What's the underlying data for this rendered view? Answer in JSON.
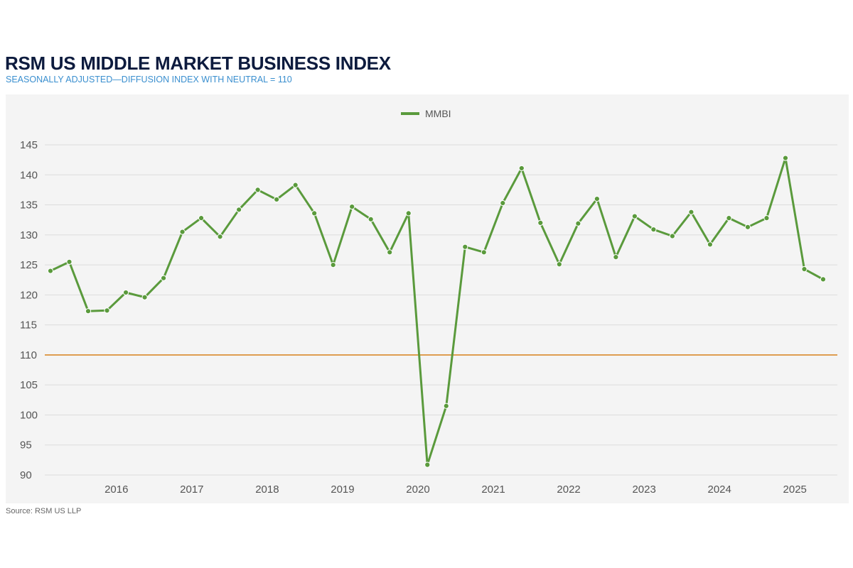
{
  "chart_data": {
    "type": "line",
    "title": "RSM US MIDDLE MARKET BUSINESS INDEX",
    "subtitle": "SEASONALLY ADJUSTED—DIFFUSION INDEX WITH NEUTRAL = 110",
    "source": "Source: RSM US LLP",
    "xlabel": "",
    "ylabel": "",
    "ylim": [
      90,
      145
    ],
    "yticks": [
      90,
      95,
      100,
      105,
      110,
      115,
      120,
      125,
      130,
      135,
      140,
      145
    ],
    "xtick_labels": [
      "2016",
      "2017",
      "2018",
      "2019",
      "2020",
      "2021",
      "2022",
      "2023",
      "2024",
      "2025"
    ],
    "grid": true,
    "legend_position": "top-center",
    "reference_line": {
      "value": 110,
      "label": "Neutral",
      "color": "#d9892b"
    },
    "series": [
      {
        "name": "MMBI",
        "color": "#5a9a3c",
        "x": [
          "2015 Q3",
          "2015 Q4",
          "2016 Q1",
          "2016 Q2",
          "2016 Q3",
          "2016 Q4",
          "2017 Q1",
          "2017 Q2",
          "2017 Q3",
          "2017 Q4",
          "2018 Q1",
          "2018 Q2",
          "2018 Q3",
          "2018 Q4",
          "2019 Q1",
          "2019 Q2",
          "2019 Q3",
          "2019 Q4",
          "2020 Q1",
          "2020 Q2",
          "2020 Q3",
          "2020 Q4",
          "2021 Q1",
          "2021 Q2",
          "2021 Q3",
          "2021 Q4",
          "2022 Q1",
          "2022 Q2",
          "2022 Q3",
          "2022 Q4",
          "2023 Q1",
          "2023 Q2",
          "2023 Q3",
          "2023 Q4",
          "2024 Q1",
          "2024 Q2",
          "2024 Q3",
          "2024 Q4",
          "2025 Q1",
          "2025 Q2",
          "2025 Q3",
          "2025 Q4"
        ],
        "values": [
          124.0,
          125.5,
          117.3,
          117.4,
          120.4,
          119.6,
          122.8,
          130.5,
          132.8,
          129.7,
          134.2,
          137.5,
          135.9,
          138.3,
          133.6,
          125.0,
          134.7,
          132.6,
          127.1,
          133.6,
          91.7,
          101.5,
          128.0,
          127.1,
          135.3,
          141.1,
          132.0,
          125.1,
          131.9,
          136.0,
          126.3,
          133.1,
          130.9,
          129.8,
          133.8,
          128.4,
          132.8,
          131.3,
          132.8,
          142.8,
          124.3,
          122.6
        ]
      }
    ]
  }
}
